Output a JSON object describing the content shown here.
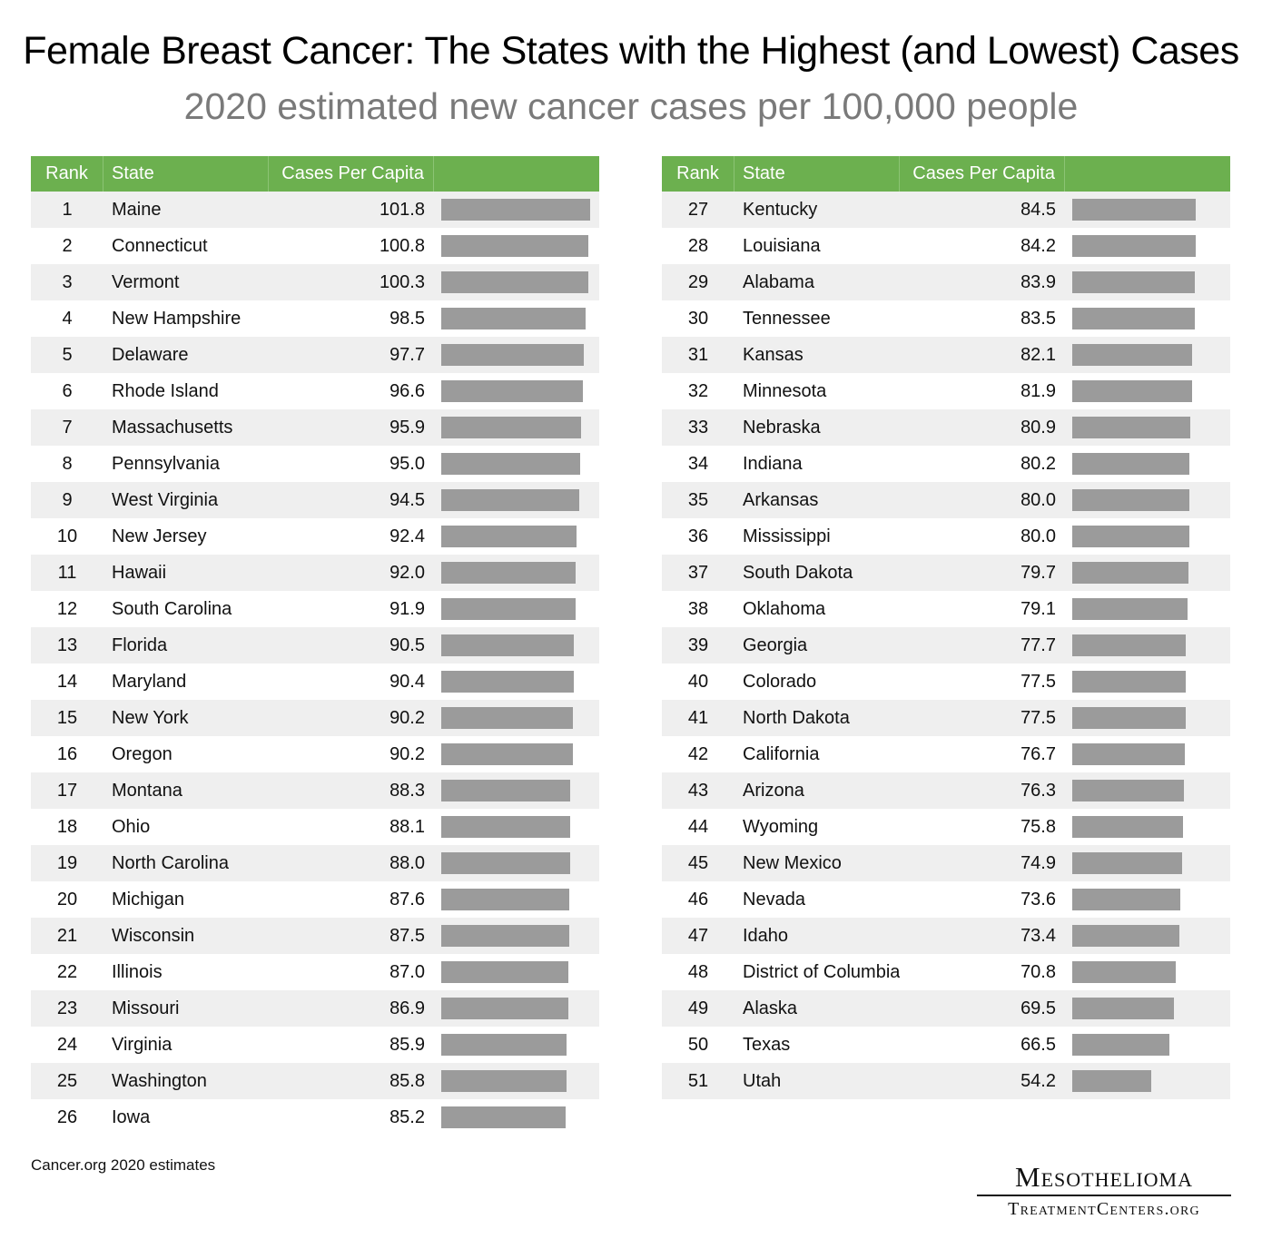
{
  "title": "Female Breast Cancer: The States with the Highest (and Lowest) Cases",
  "subtitle": "2020 estimated new cancer cases per 100,000 people",
  "source": "Cancer.org 2020 estimates",
  "logo": {
    "line1": "Mesothelioma",
    "line2": "TreatmentCenters.org"
  },
  "colors": {
    "header": "#6cb04f",
    "bar": "#9b9b9b",
    "stripe": "#efefef"
  },
  "chart_data": {
    "type": "table",
    "title": "Female Breast Cancer: The States with the Highest (and Lowest) Cases",
    "subtitle": "2020 estimated new cancer cases per 100,000 people",
    "columns": [
      "Rank",
      "State",
      "Cases Per Capita"
    ],
    "rows": [
      {
        "rank": "1",
        "state": "Maine",
        "value": 101.8
      },
      {
        "rank": "2",
        "state": "Connecticut",
        "value": 100.8
      },
      {
        "rank": "3",
        "state": "Vermont",
        "value": 100.3
      },
      {
        "rank": "4",
        "state": "New Hampshire",
        "value": 98.5
      },
      {
        "rank": "5",
        "state": "Delaware",
        "value": 97.7
      },
      {
        "rank": "6",
        "state": "Rhode Island",
        "value": 96.6
      },
      {
        "rank": "7",
        "state": "Massachusetts",
        "value": 95.9
      },
      {
        "rank": "8",
        "state": "Pennsylvania",
        "value": 95.0
      },
      {
        "rank": "9",
        "state": "West Virginia",
        "value": 94.5
      },
      {
        "rank": "10",
        "state": "New Jersey",
        "value": 92.4
      },
      {
        "rank": "11",
        "state": "Hawaii",
        "value": 92.0
      },
      {
        "rank": "12",
        "state": "South Carolina",
        "value": 91.9
      },
      {
        "rank": "13",
        "state": "Florida",
        "value": 90.5
      },
      {
        "rank": "14",
        "state": "Maryland",
        "value": 90.4
      },
      {
        "rank": "15",
        "state": "New York",
        "value": 90.2
      },
      {
        "rank": "16",
        "state": "Oregon",
        "value": 90.2
      },
      {
        "rank": "17",
        "state": "Montana",
        "value": 88.3
      },
      {
        "rank": "18",
        "state": "Ohio",
        "value": 88.1
      },
      {
        "rank": "19",
        "state": "North Carolina",
        "value": 88.0
      },
      {
        "rank": "20",
        "state": "Michigan",
        "value": 87.6
      },
      {
        "rank": "21",
        "state": "Wisconsin",
        "value": 87.5
      },
      {
        "rank": "22",
        "state": "Illinois",
        "value": 87.0
      },
      {
        "rank": "23",
        "state": "Missouri",
        "value": 86.9
      },
      {
        "rank": "24",
        "state": "Virginia",
        "value": 85.9
      },
      {
        "rank": "25",
        "state": "Washington",
        "value": 85.8
      },
      {
        "rank": "26",
        "state": "Iowa",
        "value": 85.2
      },
      {
        "rank": "27",
        "state": "Kentucky",
        "value": 84.5
      },
      {
        "rank": "28",
        "state": "Louisiana",
        "value": 84.2
      },
      {
        "rank": "29",
        "state": "Alabama",
        "value": 83.9
      },
      {
        "rank": "30",
        "state": "Tennessee",
        "value": 83.5
      },
      {
        "rank": "31",
        "state": "Kansas",
        "value": 82.1
      },
      {
        "rank": "32",
        "state": "Minnesota",
        "value": 81.9
      },
      {
        "rank": "33",
        "state": "Nebraska",
        "value": 80.9
      },
      {
        "rank": "34",
        "state": "Indiana",
        "value": 80.2
      },
      {
        "rank": "35",
        "state": "Arkansas",
        "value": 80.0
      },
      {
        "rank": "36",
        "state": "Mississippi",
        "value": 80.0
      },
      {
        "rank": "37",
        "state": "South Dakota",
        "value": 79.7
      },
      {
        "rank": "38",
        "state": "Oklahoma",
        "value": 79.1
      },
      {
        "rank": "39",
        "state": "Georgia",
        "value": 77.7
      },
      {
        "rank": "40",
        "state": "Colorado",
        "value": 77.5
      },
      {
        "rank": "41",
        "state": "North Dakota",
        "value": 77.5
      },
      {
        "rank": "42",
        "state": "California",
        "value": 76.7
      },
      {
        "rank": "43",
        "state": "Arizona",
        "value": 76.3
      },
      {
        "rank": "44",
        "state": "Wyoming",
        "value": 75.8
      },
      {
        "rank": "45",
        "state": "New Mexico",
        "value": 74.9
      },
      {
        "rank": "46",
        "state": "Nevada",
        "value": 73.6
      },
      {
        "rank": "47",
        "state": "Idaho",
        "value": 73.4
      },
      {
        "rank": "48",
        "state": "District of Columbia",
        "value": 70.8
      },
      {
        "rank": "49",
        "state": "Alaska",
        "value": 69.5
      },
      {
        "rank": "50",
        "state": "Texas",
        "value": 66.5
      },
      {
        "rank": "51",
        "state": "Utah",
        "value": 54.2
      }
    ],
    "bar_max": 101.8
  }
}
